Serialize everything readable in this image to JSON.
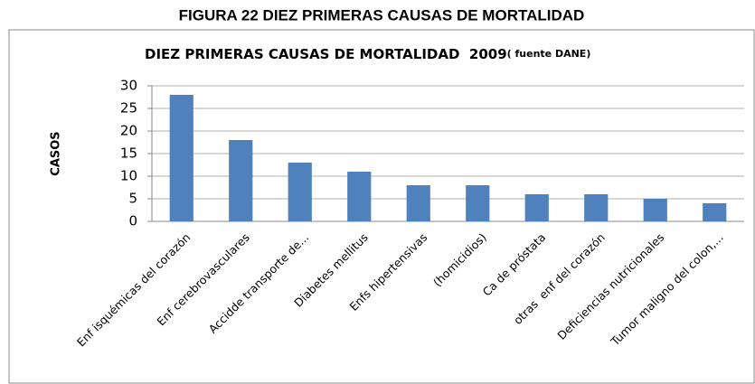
{
  "chart_data": {
    "type": "bar",
    "caption": "FIGURA 22 DIEZ PRIMERAS CAUSAS DE MORTALIDAD",
    "title": "DIEZ PRIMERAS CAUSAS DE MORTALIDAD  2009",
    "subtitle": "( fuente DANE)",
    "ylabel": "CASOS",
    "categories": [
      "Enf isquémicas del corazón",
      "Enf cerebrovasculares",
      "Accidde transporte de...",
      "Diabetes mellitus",
      "Enfs hipertensivas",
      "(homicidios)",
      "Ca de próstata",
      "otras  enf del corazón",
      "Deficiencias nutricionales",
      "Tumor maligno del colon,..."
    ],
    "values": [
      28,
      18,
      13,
      11,
      8,
      8,
      6,
      6,
      5,
      4
    ],
    "color": "#4f81bd",
    "ylim": [
      0,
      30
    ],
    "yticks": [
      0,
      5,
      10,
      15,
      20,
      25,
      30
    ],
    "grid": true
  }
}
